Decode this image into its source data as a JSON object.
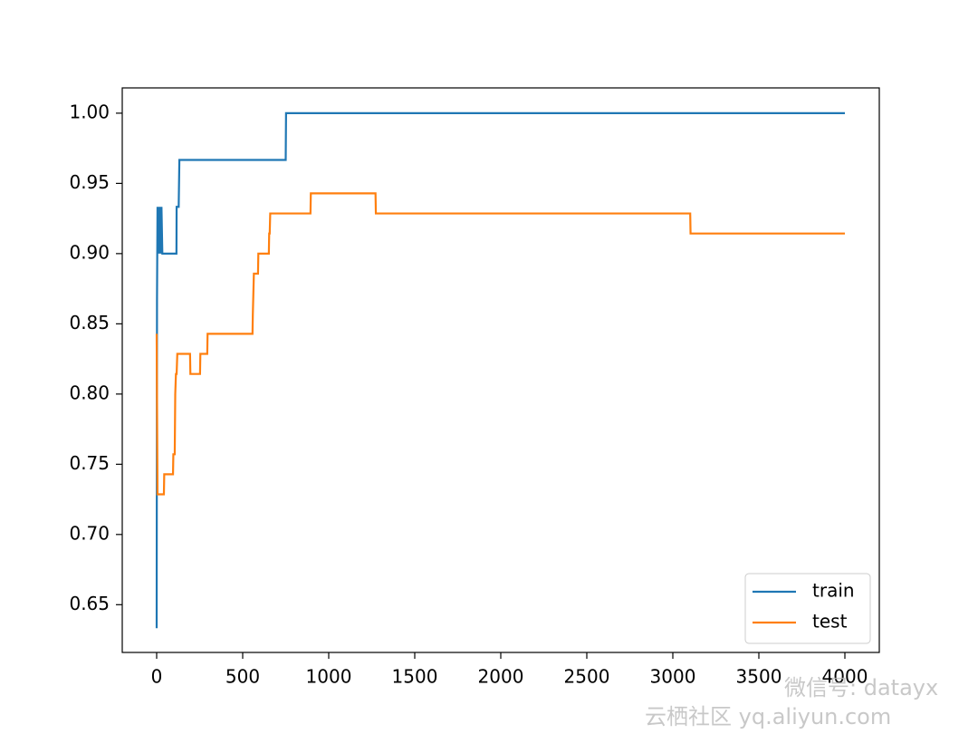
{
  "chart_data": {
    "type": "line",
    "xlim": [
      -200,
      4200
    ],
    "ylim": [
      0.616,
      1.018
    ],
    "xticks": [
      0,
      500,
      1000,
      1500,
      2000,
      2500,
      3000,
      3500,
      4000
    ],
    "yticks": [
      {
        "value": 0.65,
        "label": "0.65"
      },
      {
        "value": 0.7,
        "label": "0.70"
      },
      {
        "value": 0.75,
        "label": "0.75"
      },
      {
        "value": 0.8,
        "label": "0.80"
      },
      {
        "value": 0.85,
        "label": "0.85"
      },
      {
        "value": 0.9,
        "label": "0.90"
      },
      {
        "value": 0.95,
        "label": "0.95"
      },
      {
        "value": 1.0,
        "label": "1.00"
      }
    ],
    "legend": "lower right",
    "series": [
      {
        "name": "train",
        "color": "#1f77b4",
        "x": [
          0,
          2,
          5,
          8,
          12,
          15,
          20,
          25,
          28,
          33,
          115,
          116,
          128,
          132,
          750,
          752,
          4000
        ],
        "values": [
          0.6333,
          0.8667,
          0.9333,
          0.9,
          0.9333,
          0.9,
          0.9333,
          0.9,
          0.9333,
          0.9,
          0.9,
          0.9333,
          0.9333,
          0.9667,
          0.9667,
          1.0,
          1.0
        ]
      },
      {
        "name": "test",
        "color": "#ff7f0e",
        "x": [
          0,
          5,
          42,
          44,
          95,
          97,
          105,
          108,
          112,
          116,
          120,
          126,
          194,
          196,
          252,
          254,
          294,
          296,
          557,
          559,
          562,
          565,
          578,
          580,
          589,
          591,
          652,
          654,
          657,
          660,
          668,
          670,
          894,
          896,
          1272,
          1274,
          3101,
          3103,
          4000
        ],
        "values": [
          0.8429,
          0.7286,
          0.7286,
          0.7429,
          0.7429,
          0.7571,
          0.7571,
          0.8,
          0.8143,
          0.8143,
          0.8286,
          0.8286,
          0.8286,
          0.8143,
          0.8143,
          0.8286,
          0.8286,
          0.8429,
          0.8429,
          0.8571,
          0.8714,
          0.8857,
          0.8857,
          0.8857,
          0.8857,
          0.9,
          0.9,
          0.9143,
          0.9143,
          0.9286,
          0.9286,
          0.9286,
          0.9286,
          0.9429,
          0.9429,
          0.9286,
          0.9286,
          0.9143,
          0.9143
        ]
      }
    ],
    "watermark": [
      "微信号: datayx",
      "云栖社区 yq.aliyun.com"
    ]
  }
}
